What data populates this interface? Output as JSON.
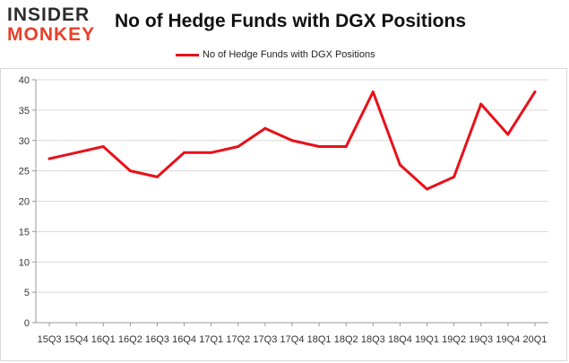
{
  "logo": {
    "line1": "INSIDER",
    "line2": "MONKEY"
  },
  "colors": {
    "series": "#e8101a",
    "logo_accent": "#e8402a",
    "grid": "#d9d9d9",
    "axis": "#999999"
  },
  "chart_data": {
    "type": "line",
    "title": "No of Hedge Funds with DGX Positions",
    "xlabel": "",
    "ylabel": "",
    "legend_placement": "top-center",
    "grid": true,
    "ylim": [
      0,
      40
    ],
    "yticks": [
      0,
      5,
      10,
      15,
      20,
      25,
      30,
      35,
      40
    ],
    "categories": [
      "15Q3",
      "15Q4",
      "16Q1",
      "16Q2",
      "16Q3",
      "16Q4",
      "17Q1",
      "17Q2",
      "17Q3",
      "17Q4",
      "18Q1",
      "18Q2",
      "18Q3",
      "18Q4",
      "19Q1",
      "19Q2",
      "19Q3",
      "19Q4",
      "20Q1"
    ],
    "series": [
      {
        "name": "No of Hedge Funds with DGX Positions",
        "values": [
          27,
          28,
          29,
          25,
          24,
          28,
          28,
          29,
          32,
          30,
          29,
          29,
          38,
          26,
          22,
          24,
          36,
          31,
          38
        ]
      }
    ]
  }
}
